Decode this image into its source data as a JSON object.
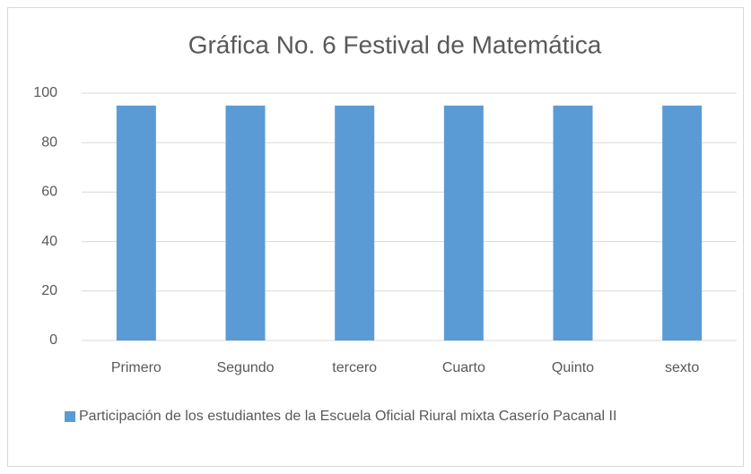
{
  "chart_data": {
    "type": "bar",
    "title": "Gráfica No. 6 Festival de Matemática",
    "categories": [
      "Primero",
      "Segundo",
      "tercero",
      "Cuarto",
      "Quinto",
      "sexto"
    ],
    "series": [
      {
        "name": "Participación de los estudiantes de la Escuela Oficial Riural mixta  Caserío Pacanal II",
        "color": "#5b9bd5",
        "values": [
          95,
          95,
          95,
          95,
          95,
          95
        ]
      }
    ],
    "ylim": [
      0,
      100
    ],
    "yticks": [
      0,
      20,
      40,
      60,
      80,
      100
    ],
    "grid": true,
    "legend": "bottom"
  }
}
